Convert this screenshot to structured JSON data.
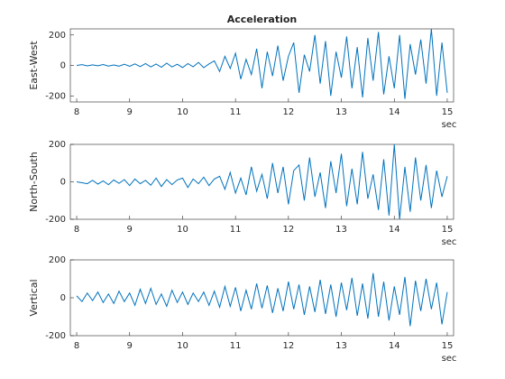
{
  "chart_data": [
    {
      "type": "line",
      "title": "Acceleration",
      "ylabel": "East-West",
      "xlabel": "sec",
      "x": [
        8,
        8.1,
        8.2,
        8.3,
        8.4,
        8.5,
        8.6,
        8.7,
        8.8,
        8.9,
        9,
        9.1,
        9.2,
        9.3,
        9.4,
        9.5,
        9.6,
        9.7,
        9.8,
        9.9,
        10,
        10.1,
        10.2,
        10.3,
        10.4,
        10.5,
        10.6,
        10.7,
        10.8,
        10.9,
        11,
        11.1,
        11.2,
        11.3,
        11.4,
        11.5,
        11.6,
        11.7,
        11.8,
        11.9,
        12,
        12.1,
        12.2,
        12.3,
        12.4,
        12.5,
        12.6,
        12.7,
        12.8,
        12.9,
        13,
        13.1,
        13.2,
        13.3,
        13.4,
        13.5,
        13.6,
        13.7,
        13.8,
        13.9,
        14,
        14.1,
        14.2,
        14.3,
        14.4,
        14.5,
        14.6,
        14.7,
        14.8,
        14.9,
        15
      ],
      "series": [
        {
          "color": "#0072bd",
          "values": [
            0,
            5,
            -3,
            4,
            -2,
            6,
            -4,
            3,
            -5,
            8,
            -6,
            10,
            -8,
            12,
            -10,
            9,
            -12,
            15,
            -10,
            8,
            -14,
            12,
            -9,
            20,
            -15,
            10,
            30,
            -40,
            60,
            -20,
            80,
            -90,
            40,
            -60,
            110,
            -150,
            90,
            -70,
            130,
            -100,
            60,
            150,
            -180,
            70,
            -40,
            200,
            -120,
            160,
            -200,
            90,
            -80,
            190,
            -150,
            120,
            -210,
            180,
            -100,
            220,
            -190,
            60,
            -150,
            200,
            -220,
            140,
            -60,
            170,
            -120,
            240,
            -200,
            150,
            -180
          ]
        }
      ],
      "xlim": [
        7.88,
        15.12
      ],
      "xticks": [
        8,
        9,
        10,
        11,
        12,
        13,
        14,
        15
      ],
      "ylim": [
        -240,
        240
      ],
      "yticks": [
        -200,
        0,
        200
      ]
    },
    {
      "type": "line",
      "ylabel": "North-South",
      "xlabel": "sec",
      "x": [
        8,
        8.1,
        8.2,
        8.3,
        8.4,
        8.5,
        8.6,
        8.7,
        8.8,
        8.9,
        9,
        9.1,
        9.2,
        9.3,
        9.4,
        9.5,
        9.6,
        9.7,
        9.8,
        9.9,
        10,
        10.1,
        10.2,
        10.3,
        10.4,
        10.5,
        10.6,
        10.7,
        10.8,
        10.9,
        11,
        11.1,
        11.2,
        11.3,
        11.4,
        11.5,
        11.6,
        11.7,
        11.8,
        11.9,
        12,
        12.1,
        12.2,
        12.3,
        12.4,
        12.5,
        12.6,
        12.7,
        12.8,
        12.9,
        13,
        13.1,
        13.2,
        13.3,
        13.4,
        13.5,
        13.6,
        13.7,
        13.8,
        13.9,
        14,
        14.1,
        14.2,
        14.3,
        14.4,
        14.5,
        14.6,
        14.7,
        14.8,
        14.9,
        15
      ],
      "series": [
        {
          "color": "#0072bd",
          "values": [
            0,
            -5,
            -10,
            8,
            -12,
            5,
            -15,
            10,
            -8,
            12,
            -20,
            15,
            -10,
            8,
            -18,
            20,
            -25,
            12,
            -15,
            10,
            20,
            -30,
            15,
            -10,
            25,
            -20,
            15,
            30,
            -40,
            50,
            -60,
            20,
            -70,
            80,
            -50,
            40,
            -90,
            100,
            -60,
            80,
            -120,
            60,
            90,
            -100,
            130,
            -80,
            50,
            -140,
            110,
            -60,
            150,
            -130,
            70,
            -120,
            160,
            -90,
            40,
            -150,
            120,
            -180,
            200,
            -200,
            80,
            -160,
            130,
            -100,
            90,
            -140,
            60,
            -80,
            30
          ]
        }
      ],
      "xlim": [
        7.88,
        15.12
      ],
      "xticks": [
        8,
        9,
        10,
        11,
        12,
        13,
        14,
        15
      ],
      "ylim": [
        -200,
        200
      ],
      "yticks": [
        -200,
        0,
        200
      ]
    },
    {
      "type": "line",
      "ylabel": "Vertical",
      "xlabel": "sec",
      "x": [
        8,
        8.1,
        8.2,
        8.3,
        8.4,
        8.5,
        8.6,
        8.7,
        8.8,
        8.9,
        9,
        9.1,
        9.2,
        9.3,
        9.4,
        9.5,
        9.6,
        9.7,
        9.8,
        9.9,
        10,
        10.1,
        10.2,
        10.3,
        10.4,
        10.5,
        10.6,
        10.7,
        10.8,
        10.9,
        11,
        11.1,
        11.2,
        11.3,
        11.4,
        11.5,
        11.6,
        11.7,
        11.8,
        11.9,
        12,
        12.1,
        12.2,
        12.3,
        12.4,
        12.5,
        12.6,
        12.7,
        12.8,
        12.9,
        13,
        13.1,
        13.2,
        13.3,
        13.4,
        13.5,
        13.6,
        13.7,
        13.8,
        13.9,
        14,
        14.1,
        14.2,
        14.3,
        14.4,
        14.5,
        14.6,
        14.7,
        14.8,
        14.9,
        15
      ],
      "series": [
        {
          "color": "#0072bd",
          "values": [
            10,
            -20,
            25,
            -15,
            30,
            -25,
            20,
            -30,
            35,
            -20,
            25,
            -40,
            45,
            -30,
            50,
            -35,
            20,
            -45,
            40,
            -25,
            30,
            -35,
            25,
            -20,
            30,
            -40,
            35,
            -50,
            60,
            -45,
            55,
            -70,
            40,
            -60,
            75,
            -55,
            65,
            -80,
            50,
            -70,
            85,
            -60,
            70,
            -90,
            60,
            -75,
            95,
            -85,
            70,
            -100,
            80,
            -65,
            105,
            -95,
            75,
            -110,
            130,
            -100,
            85,
            -120,
            60,
            -90,
            110,
            -150,
            90,
            -70,
            100,
            -60,
            80,
            -140,
            30
          ]
        }
      ],
      "xlim": [
        7.88,
        15.12
      ],
      "xticks": [
        8,
        9,
        10,
        11,
        12,
        13,
        14,
        15
      ],
      "ylim": [
        -200,
        200
      ],
      "yticks": [
        -200,
        0,
        200
      ]
    }
  ]
}
